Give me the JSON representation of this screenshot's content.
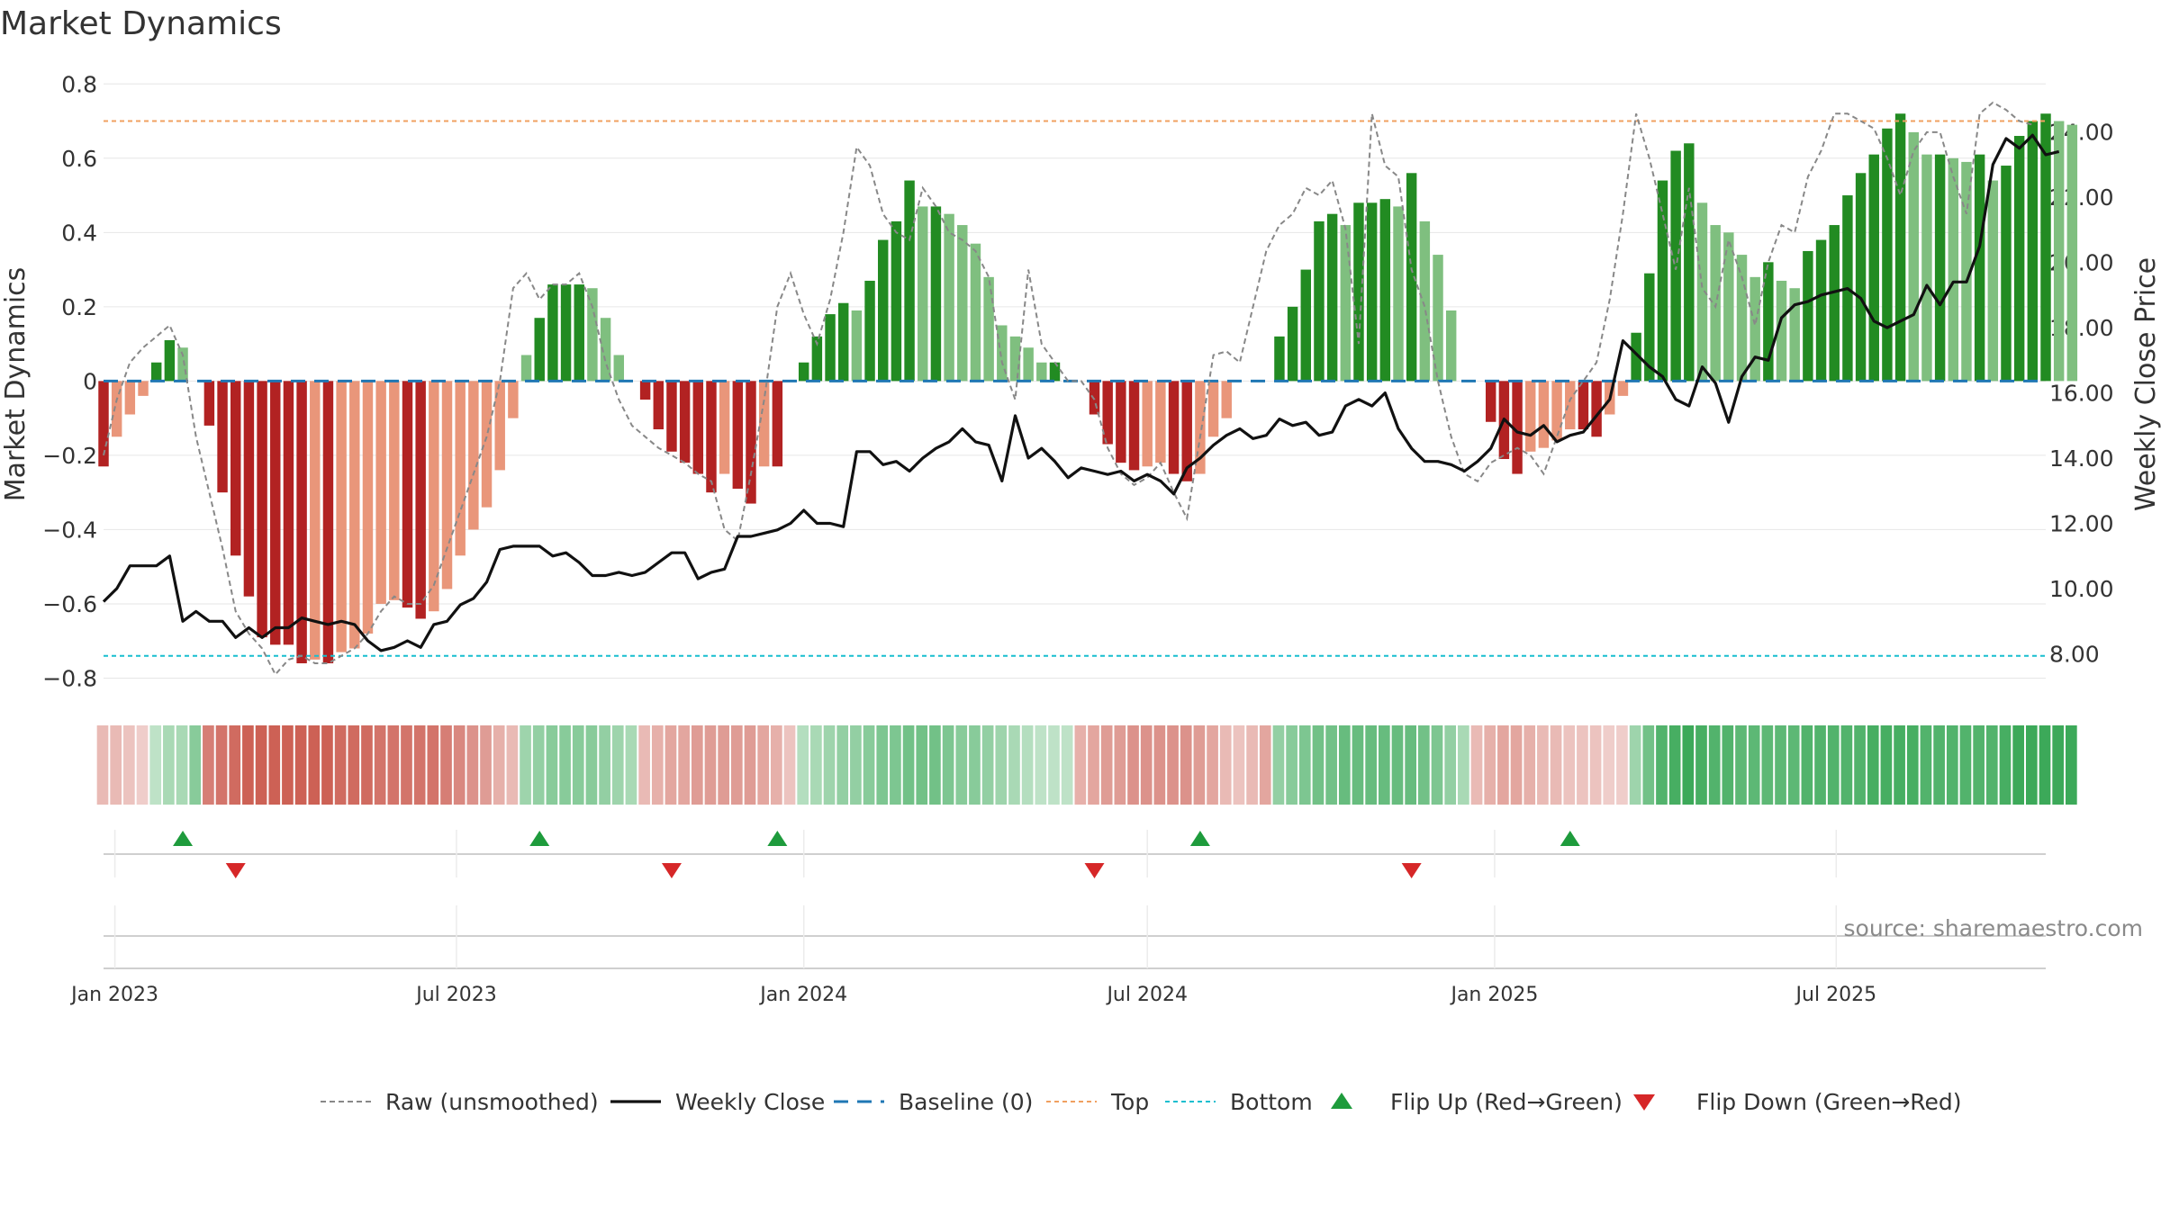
{
  "chart_data": {
    "type": "bar",
    "title": "Market Dynamics",
    "ylabel_left": "Market Dynamics",
    "ylabel_right": "Weekly Close Price",
    "source": "source: sharemaestro.com",
    "left_axis": {
      "ylim": [
        -0.84,
        0.82
      ],
      "ticks": [
        0.8,
        0.6,
        0.4,
        0.2,
        0,
        -0.2,
        -0.4,
        -0.6,
        -0.8
      ],
      "tick_labels": [
        "0.8",
        "0.6",
        "0.4",
        "0.2",
        "0",
        "−0.2",
        "−0.4",
        "−0.6",
        "−0.8"
      ]
    },
    "right_axis": {
      "ylim": [
        6.8,
        25.7
      ],
      "ticks": [
        24,
        22,
        20,
        18,
        16,
        14,
        12,
        10,
        8
      ],
      "tick_labels": [
        "24.00",
        "22.00",
        "20.00",
        "18.00",
        "16.00",
        "14.00",
        "12.00",
        "10.00",
        "8.00"
      ]
    },
    "x_axis": {
      "start": "2022-12-26",
      "end": "2025-10-20",
      "tick_dates": [
        "2023-01-01",
        "2023-07-01",
        "2024-01-01",
        "2024-07-01",
        "2025-01-01",
        "2025-07-01"
      ],
      "tick_labels": [
        "Jan 2023",
        "Jul 2023",
        "Jan 2024",
        "Jul 2024",
        "Jan 2025",
        "Jul 2025"
      ]
    },
    "top_level": 0.7,
    "bottom_level": -0.74,
    "baseline": 0,
    "week_start": "2022-12-26",
    "dynamics": [
      -0.23,
      -0.15,
      -0.09,
      -0.04,
      0.05,
      0.11,
      0.09,
      0.0,
      -0.12,
      -0.3,
      -0.47,
      -0.58,
      -0.69,
      -0.71,
      -0.71,
      -0.76,
      -0.75,
      -0.76,
      -0.73,
      -0.72,
      -0.68,
      -0.6,
      -0.59,
      -0.61,
      -0.64,
      -0.62,
      -0.56,
      -0.47,
      -0.4,
      -0.34,
      -0.24,
      -0.1,
      0.07,
      0.17,
      0.26,
      0.26,
      0.26,
      0.25,
      0.17,
      0.07,
      0.0,
      -0.05,
      -0.13,
      -0.19,
      -0.22,
      -0.25,
      -0.3,
      -0.25,
      -0.29,
      -0.33,
      -0.23,
      -0.23,
      0.0,
      0.05,
      0.12,
      0.18,
      0.21,
      0.19,
      0.27,
      0.38,
      0.43,
      0.54,
      0.47,
      0.47,
      0.45,
      0.42,
      0.37,
      0.28,
      0.15,
      0.12,
      0.09,
      0.05,
      0.05,
      0.0,
      0.0,
      -0.09,
      -0.17,
      -0.22,
      -0.24,
      -0.23,
      -0.22,
      -0.25,
      -0.27,
      -0.25,
      -0.15,
      -0.1,
      0.0,
      0.0,
      0.0,
      0.12,
      0.2,
      0.3,
      0.43,
      0.45,
      0.42,
      0.48,
      0.48,
      0.49,
      0.47,
      0.56,
      0.43,
      0.34,
      0.19,
      0.0,
      0.0,
      -0.11,
      -0.21,
      -0.25,
      -0.19,
      -0.18,
      -0.16,
      -0.13,
      -0.13,
      -0.15,
      -0.09,
      -0.04,
      0.13,
      0.29,
      0.54,
      0.62,
      0.64,
      0.48,
      0.42,
      0.4,
      0.34,
      0.28,
      0.32,
      0.27,
      0.25,
      0.35,
      0.38,
      0.42,
      0.5,
      0.56,
      0.61,
      0.68,
      0.72,
      0.67,
      0.61,
      0.61,
      0.6,
      0.59,
      0.61,
      0.54,
      0.58,
      0.66,
      0.7,
      0.72,
      0.7,
      0.69
    ],
    "raw": [
      -0.2,
      -0.05,
      0.05,
      0.09,
      0.12,
      0.15,
      0.07,
      -0.15,
      -0.3,
      -0.45,
      -0.62,
      -0.68,
      -0.72,
      -0.79,
      -0.75,
      -0.74,
      -0.76,
      -0.76,
      -0.74,
      -0.72,
      -0.68,
      -0.62,
      -0.58,
      -0.6,
      -0.6,
      -0.55,
      -0.45,
      -0.35,
      -0.25,
      -0.15,
      0.0,
      0.25,
      0.29,
      0.22,
      0.26,
      0.26,
      0.29,
      0.2,
      0.05,
      -0.05,
      -0.12,
      -0.15,
      -0.18,
      -0.2,
      -0.22,
      -0.25,
      -0.27,
      -0.4,
      -0.43,
      -0.25,
      -0.05,
      0.2,
      0.29,
      0.18,
      0.1,
      0.22,
      0.4,
      0.63,
      0.58,
      0.45,
      0.4,
      0.38,
      0.52,
      0.47,
      0.4,
      0.38,
      0.35,
      0.28,
      0.05,
      -0.05,
      0.3,
      0.1,
      0.05,
      0.0,
      0.0,
      -0.05,
      -0.18,
      -0.25,
      -0.28,
      -0.26,
      -0.22,
      -0.3,
      -0.37,
      -0.15,
      0.07,
      0.08,
      0.05,
      0.2,
      0.35,
      0.42,
      0.45,
      0.52,
      0.5,
      0.54,
      0.41,
      0.1,
      0.72,
      0.58,
      0.55,
      0.3,
      0.2,
      0.0,
      -0.15,
      -0.25,
      -0.27,
      -0.22,
      -0.2,
      -0.18,
      -0.2,
      -0.25,
      -0.15,
      -0.05,
      0.0,
      0.05,
      0.22,
      0.45,
      0.72,
      0.6,
      0.45,
      0.3,
      0.52,
      0.25,
      0.2,
      0.38,
      0.28,
      0.15,
      0.32,
      0.42,
      0.4,
      0.55,
      0.62,
      0.72,
      0.72,
      0.7,
      0.68,
      0.6,
      0.5,
      0.62,
      0.67,
      0.67,
      0.55,
      0.45,
      0.72,
      0.75,
      0.73,
      0.7,
      0.69
    ],
    "close": [
      9.6,
      10.0,
      10.7,
      10.7,
      10.7,
      11.0,
      9.0,
      9.3,
      9.0,
      9.0,
      8.5,
      8.8,
      8.5,
      8.8,
      8.8,
      9.1,
      9.0,
      8.9,
      9.0,
      8.9,
      8.4,
      8.1,
      8.2,
      8.4,
      8.2,
      8.9,
      9.0,
      9.5,
      9.7,
      10.2,
      11.2,
      11.3,
      11.3,
      11.3,
      11.0,
      11.1,
      10.8,
      10.4,
      10.4,
      10.5,
      10.4,
      10.5,
      10.8,
      11.1,
      11.1,
      10.3,
      10.5,
      10.6,
      11.6,
      11.6,
      11.7,
      11.8,
      12.0,
      12.4,
      12.0,
      12.0,
      11.9,
      14.2,
      14.2,
      13.8,
      13.9,
      13.6,
      14.0,
      14.3,
      14.5,
      14.9,
      14.5,
      14.4,
      13.3,
      15.3,
      14.0,
      14.3,
      13.9,
      13.4,
      13.7,
      13.6,
      13.5,
      13.6,
      13.3,
      13.5,
      13.3,
      12.9,
      13.7,
      14.0,
      14.4,
      14.7,
      14.9,
      14.6,
      14.7,
      15.2,
      15.0,
      15.1,
      14.7,
      14.8,
      15.6,
      15.8,
      15.6,
      16.0,
      14.9,
      14.3,
      13.9,
      13.9,
      13.8,
      13.6,
      13.9,
      14.3,
      15.2,
      14.8,
      14.7,
      15.0,
      14.5,
      14.7,
      14.8,
      15.3,
      15.8,
      17.6,
      17.2,
      16.8,
      16.5,
      15.8,
      15.6,
      16.8,
      16.3,
      15.1,
      16.5,
      17.1,
      17.0,
      18.3,
      18.7,
      18.8,
      19.0,
      19.1,
      19.2,
      18.9,
      18.2,
      18.0,
      18.2,
      18.4,
      19.3,
      18.7,
      19.4,
      19.4,
      20.5,
      23.0,
      23.8,
      23.5,
      23.9,
      23.3,
      23.4
    ],
    "state_strength": [
      0.35,
      0.35,
      0.3,
      0.25,
      0.3,
      0.4,
      0.4,
      0.55,
      0.65,
      0.7,
      0.75,
      0.8,
      0.8,
      0.8,
      0.8,
      0.8,
      0.8,
      0.8,
      0.75,
      0.75,
      0.75,
      0.7,
      0.7,
      0.7,
      0.7,
      0.7,
      0.65,
      0.6,
      0.55,
      0.5,
      0.4,
      0.35,
      0.45,
      0.5,
      0.55,
      0.55,
      0.55,
      0.55,
      0.5,
      0.45,
      0.4,
      0.35,
      0.4,
      0.45,
      0.45,
      0.5,
      0.5,
      0.5,
      0.5,
      0.5,
      0.45,
      0.4,
      0.3,
      0.35,
      0.4,
      0.45,
      0.5,
      0.5,
      0.55,
      0.6,
      0.6,
      0.65,
      0.65,
      0.65,
      0.6,
      0.55,
      0.55,
      0.5,
      0.45,
      0.4,
      0.35,
      0.3,
      0.3,
      0.3,
      0.4,
      0.45,
      0.5,
      0.5,
      0.55,
      0.55,
      0.55,
      0.55,
      0.55,
      0.5,
      0.45,
      0.35,
      0.3,
      0.35,
      0.45,
      0.5,
      0.55,
      0.6,
      0.65,
      0.65,
      0.7,
      0.7,
      0.7,
      0.7,
      0.7,
      0.7,
      0.65,
      0.6,
      0.5,
      0.4,
      0.35,
      0.4,
      0.45,
      0.45,
      0.4,
      0.35,
      0.35,
      0.3,
      0.3,
      0.3,
      0.25,
      0.25,
      0.45,
      0.65,
      0.8,
      0.85,
      0.9,
      0.85,
      0.8,
      0.8,
      0.75,
      0.75,
      0.75,
      0.75,
      0.75,
      0.8,
      0.8,
      0.8,
      0.8,
      0.8,
      0.85,
      0.85,
      0.85,
      0.85,
      0.8,
      0.8,
      0.8,
      0.8,
      0.8,
      0.8,
      0.85,
      0.9,
      0.9,
      0.9,
      0.9,
      0.9
    ],
    "flip_up": [
      "2023-02-06",
      "2023-08-14",
      "2023-12-18",
      "2024-07-29",
      "2025-02-10"
    ],
    "flip_down": [
      "2023-03-06",
      "2023-10-23",
      "2024-06-03",
      "2024-11-18"
    ],
    "colors": {
      "neg_strong": "#b22222",
      "neg_weak": "#e9967a",
      "pos_strong": "#228b22",
      "pos_weak": "#7fbf7f",
      "raw": "#888888",
      "close": "#111111",
      "baseline": "#1f77b4",
      "top": "#f0a060",
      "bottom": "#17becf",
      "flip_up": "#1e9b3c",
      "flip_down": "#d62728",
      "strip_neg": "#c0392b",
      "strip_pos": "#27a047"
    },
    "legend": [
      {
        "key": "raw",
        "label": "Raw (unsmoothed)"
      },
      {
        "key": "close",
        "label": "Weekly Close"
      },
      {
        "key": "baseline",
        "label": "Baseline (0)"
      },
      {
        "key": "top",
        "label": "Top"
      },
      {
        "key": "bottom",
        "label": "Bottom"
      },
      {
        "key": "flip_up",
        "label": "Flip Up (Red→Green)"
      },
      {
        "key": "flip_down",
        "label": "Flip Down (Green→Red)"
      }
    ]
  }
}
